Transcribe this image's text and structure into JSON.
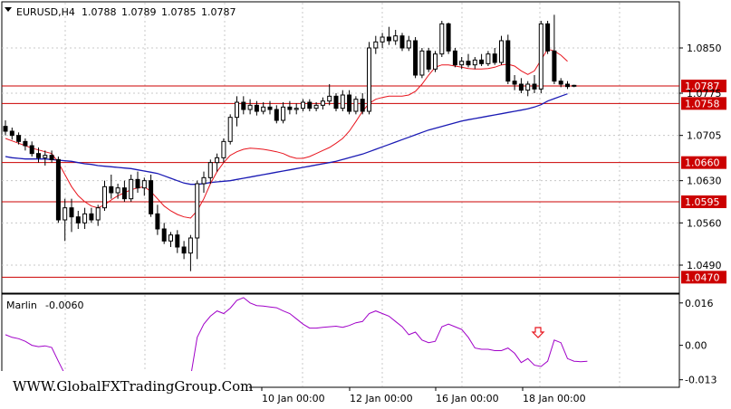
{
  "header": {
    "symbol": "EURUSD,H4",
    "open": "1.0788",
    "high": "1.0789",
    "low": "1.0785",
    "close": "1.0787"
  },
  "indicator": {
    "name": "Marlin",
    "value": "-0.0060"
  },
  "watermark": "WWW.GlobalFXTradingGroup.Com",
  "colors": {
    "ma_fast": "#e8141d",
    "ma_slow": "#1a1ab4",
    "levels": "#cc0000",
    "marlin": "#a000c8",
    "arrow": "#e8141d"
  },
  "chart_data": [
    {
      "type": "candlestick",
      "title": "EURUSD,H4",
      "ylim": [
        1.0445,
        1.0925
      ],
      "price_ticks": [
        "1.0850",
        "1.0775",
        "1.0705",
        "1.0630",
        "1.0560",
        "1.0490"
      ],
      "levels": [
        {
          "label": "1.0787",
          "value": 1.0787
        },
        {
          "label": "1.0758",
          "value": 1.0758
        },
        {
          "label": "1.0660",
          "value": 1.066
        },
        {
          "label": "1.0595",
          "value": 1.0595
        },
        {
          "label": "1.0470",
          "value": 1.047
        }
      ],
      "time_labels": [
        "10 Jan 00:00",
        "12 Jan 00:00",
        "16 Jan 00:00",
        "18 Jan 00:00"
      ],
      "candles": [
        [
          1.072,
          1.073,
          1.0705,
          1.0712
        ],
        [
          1.0712,
          1.0718,
          1.0698,
          1.0705
        ],
        [
          1.0705,
          1.071,
          1.069,
          1.0695
        ],
        [
          1.0695,
          1.07,
          1.068,
          1.0688
        ],
        [
          1.0688,
          1.0695,
          1.067,
          1.0675
        ],
        [
          1.0675,
          1.0685,
          1.066,
          1.0668
        ],
        [
          1.0668,
          1.068,
          1.0655,
          1.0672
        ],
        [
          1.0672,
          1.068,
          1.066,
          1.0665
        ],
        [
          1.0665,
          1.067,
          1.056,
          1.0565
        ],
        [
          1.0565,
          1.06,
          1.053,
          1.0585
        ],
        [
          1.0585,
          1.06,
          1.0545,
          1.057
        ],
        [
          1.057,
          1.058,
          1.055,
          1.056
        ],
        [
          1.056,
          1.0585,
          1.055,
          1.0575
        ],
        [
          1.0575,
          1.0585,
          1.056,
          1.0565
        ],
        [
          1.0565,
          1.059,
          1.0555,
          1.0585
        ],
        [
          1.0585,
          1.063,
          1.058,
          1.062
        ],
        [
          1.062,
          1.064,
          1.06,
          1.061
        ],
        [
          1.061,
          1.0625,
          1.06,
          1.0618
        ],
        [
          1.0618,
          1.063,
          1.0595,
          1.06
        ],
        [
          1.06,
          1.064,
          1.0595,
          1.0632
        ],
        [
          1.0632,
          1.0645,
          1.061,
          1.0618
        ],
        [
          1.0618,
          1.0635,
          1.0605,
          1.063
        ],
        [
          1.063,
          1.064,
          1.057,
          1.0575
        ],
        [
          1.0575,
          1.059,
          1.054,
          1.055
        ],
        [
          1.055,
          1.056,
          1.0525,
          1.053
        ],
        [
          1.053,
          1.0545,
          1.052,
          1.054
        ],
        [
          1.054,
          1.0548,
          1.051,
          1.052
        ],
        [
          1.052,
          1.053,
          1.05,
          1.051
        ],
        [
          1.051,
          1.054,
          1.048,
          1.0535
        ],
        [
          1.0535,
          1.063,
          1.05,
          1.0625
        ],
        [
          1.0625,
          1.0645,
          1.061,
          1.0635
        ],
        [
          1.0635,
          1.0665,
          1.0625,
          1.066
        ],
        [
          1.066,
          1.0675,
          1.0645,
          1.0668
        ],
        [
          1.0668,
          1.07,
          1.066,
          1.0695
        ],
        [
          1.0695,
          1.074,
          1.069,
          1.0735
        ],
        [
          1.0735,
          1.077,
          1.072,
          1.076
        ],
        [
          1.076,
          1.077,
          1.074,
          1.0748
        ],
        [
          1.0748,
          1.0765,
          1.074,
          1.0755
        ],
        [
          1.0755,
          1.0762,
          1.0738,
          1.0745
        ],
        [
          1.0745,
          1.076,
          1.074,
          1.0752
        ],
        [
          1.0752,
          1.0762,
          1.074,
          1.0748
        ],
        [
          1.0748,
          1.0755,
          1.0725,
          1.073
        ],
        [
          1.073,
          1.076,
          1.0725,
          1.0752
        ],
        [
          1.0752,
          1.0762,
          1.074,
          1.0748
        ],
        [
          1.0748,
          1.0758,
          1.074,
          1.075
        ],
        [
          1.075,
          1.0765,
          1.0745,
          1.076
        ],
        [
          1.076,
          1.0765,
          1.0745,
          1.075
        ],
        [
          1.075,
          1.076,
          1.0745,
          1.0755
        ],
        [
          1.0755,
          1.0768,
          1.0748,
          1.0762
        ],
        [
          1.0762,
          1.079,
          1.0755,
          1.077
        ],
        [
          1.077,
          1.0775,
          1.0745,
          1.075
        ],
        [
          1.075,
          1.078,
          1.0745,
          1.0772
        ],
        [
          1.0772,
          1.078,
          1.074,
          1.0745
        ],
        [
          1.0745,
          1.077,
          1.074,
          1.0765
        ],
        [
          1.0765,
          1.0775,
          1.074,
          1.0745
        ],
        [
          1.0745,
          1.086,
          1.074,
          1.085
        ],
        [
          1.085,
          1.087,
          1.084,
          1.086
        ],
        [
          1.086,
          1.0875,
          1.085,
          1.0868
        ],
        [
          1.0868,
          1.0885,
          1.0855,
          1.0862
        ],
        [
          1.0862,
          1.088,
          1.0855,
          1.087
        ],
        [
          1.087,
          1.0875,
          1.0845,
          1.085
        ],
        [
          1.085,
          1.087,
          1.0845,
          1.0862
        ],
        [
          1.0862,
          1.0868,
          1.08,
          1.0805
        ],
        [
          1.0805,
          1.085,
          1.08,
          1.0845
        ],
        [
          1.0845,
          1.085,
          1.081,
          1.0815
        ],
        [
          1.0815,
          1.0845,
          1.081,
          1.084
        ],
        [
          1.084,
          1.0895,
          1.0835,
          1.089
        ],
        [
          1.089,
          1.0892,
          1.084,
          1.0845
        ],
        [
          1.0845,
          1.085,
          1.0818,
          1.0822
        ],
        [
          1.0822,
          1.0835,
          1.0815,
          1.0828
        ],
        [
          1.0828,
          1.084,
          1.0818,
          1.0822
        ],
        [
          1.0822,
          1.0835,
          1.0815,
          1.083
        ],
        [
          1.083,
          1.084,
          1.082,
          1.0824
        ],
        [
          1.0824,
          1.0845,
          1.082,
          1.084
        ],
        [
          1.084,
          1.085,
          1.0822,
          1.0826
        ],
        [
          1.0826,
          1.087,
          1.0822,
          1.0862
        ],
        [
          1.0862,
          1.0872,
          1.079,
          1.0795
        ],
        [
          1.0795,
          1.0805,
          1.078,
          1.079
        ],
        [
          1.079,
          1.08,
          1.0775,
          1.078
        ],
        [
          1.078,
          1.0795,
          1.077,
          1.079
        ],
        [
          1.079,
          1.0805,
          1.0775,
          1.0782
        ],
        [
          1.0782,
          1.0895,
          1.0775,
          1.089
        ],
        [
          1.089,
          1.0895,
          1.084,
          1.0845
        ],
        [
          1.0845,
          1.0905,
          1.079,
          1.0795
        ],
        [
          1.0795,
          1.08,
          1.0785,
          1.079
        ],
        [
          1.079,
          1.0795,
          1.0782,
          1.0786
        ],
        [
          1.0788,
          1.0789,
          1.0785,
          1.0787
        ]
      ],
      "ma_fast": [
        1.07,
        1.0696,
        1.0692,
        1.0688,
        1.0684,
        1.0681,
        1.0678,
        1.0675,
        1.066,
        1.064,
        1.062,
        1.0605,
        1.0595,
        1.0588,
        1.0585,
        1.059,
        1.0598,
        1.0605,
        1.061,
        1.0615,
        1.0618,
        1.062,
        1.0612,
        1.06,
        1.0588,
        1.058,
        1.0574,
        1.057,
        1.0568,
        1.058,
        1.06,
        1.0625,
        1.0645,
        1.066,
        1.0672,
        1.0678,
        1.0682,
        1.0684,
        1.0683,
        1.0682,
        1.068,
        1.0678,
        1.0675,
        1.067,
        1.0667,
        1.0667,
        1.067,
        1.0675,
        1.068,
        1.0685,
        1.0692,
        1.07,
        1.0712,
        1.0728,
        1.0745,
        1.0758,
        1.0765,
        1.0768,
        1.077,
        1.077,
        1.077,
        1.0772,
        1.0778,
        1.079,
        1.0805,
        1.0818,
        1.0822,
        1.0822,
        1.082,
        1.0818,
        1.0816,
        1.0815,
        1.0815,
        1.0816,
        1.0818,
        1.0822,
        1.0823,
        1.082,
        1.0812,
        1.0806,
        1.0812,
        1.083,
        1.0848,
        1.0845,
        1.0838,
        1.0828
      ],
      "ma_slow": [
        1.067,
        1.0668,
        1.0667,
        1.0666,
        1.0666,
        1.0666,
        1.0666,
        1.0665,
        1.0664,
        1.0663,
        1.0662,
        1.066,
        1.0658,
        1.0657,
        1.0655,
        1.0654,
        1.0653,
        1.0652,
        1.0651,
        1.065,
        1.0648,
        1.0646,
        1.0644,
        1.0642,
        1.0638,
        1.0634,
        1.063,
        1.0626,
        1.0624,
        1.0624,
        1.0625,
        1.0627,
        1.0628,
        1.0629,
        1.063,
        1.0632,
        1.0634,
        1.0636,
        1.0638,
        1.064,
        1.0642,
        1.0644,
        1.0646,
        1.0648,
        1.065,
        1.0652,
        1.0654,
        1.0656,
        1.0658,
        1.066,
        1.0662,
        1.0665,
        1.0668,
        1.0671,
        1.0674,
        1.0678,
        1.0682,
        1.0686,
        1.069,
        1.0694,
        1.0698,
        1.0702,
        1.0706,
        1.071,
        1.0714,
        1.0717,
        1.072,
        1.0723,
        1.0726,
        1.0729,
        1.0731,
        1.0733,
        1.0735,
        1.0737,
        1.0739,
        1.0741,
        1.0743,
        1.0745,
        1.0747,
        1.0749,
        1.0752,
        1.0756,
        1.0762,
        1.0766,
        1.077,
        1.0774
      ]
    },
    {
      "type": "line",
      "title": "Marlin -0.0060",
      "ylim": [
        -0.0155,
        0.019
      ],
      "ticks": [
        "0.016",
        "0.00",
        "-0.013"
      ],
      "values": [
        0.004,
        0.003,
        0.0025,
        0.0015,
        0.0,
        -0.0005,
        -0.0002,
        -0.0008,
        -0.006,
        -0.011,
        -0.015,
        -0.015,
        -0.015,
        -0.015,
        -0.015,
        -0.015,
        -0.015,
        -0.015,
        -0.015,
        -0.015,
        -0.015,
        -0.015,
        -0.015,
        -0.015,
        -0.015,
        -0.015,
        -0.015,
        -0.015,
        -0.012,
        0.003,
        0.008,
        0.011,
        0.013,
        0.012,
        0.014,
        0.017,
        0.018,
        0.016,
        0.015,
        0.0148,
        0.0145,
        0.0142,
        0.013,
        0.012,
        0.01,
        0.008,
        0.0065,
        0.0065,
        0.0068,
        0.007,
        0.0072,
        0.0068,
        0.0075,
        0.0085,
        0.009,
        0.012,
        0.013,
        0.012,
        0.011,
        0.009,
        0.007,
        0.004,
        0.005,
        0.002,
        0.001,
        0.0015,
        0.007,
        0.008,
        0.007,
        0.006,
        0.003,
        -0.001,
        -0.0015,
        -0.0015,
        -0.002,
        -0.002,
        -0.001,
        -0.003,
        -0.0065,
        -0.005,
        -0.0075,
        -0.008,
        -0.006,
        0.002,
        0.001,
        -0.005,
        -0.006,
        -0.0062,
        -0.006
      ]
    }
  ]
}
